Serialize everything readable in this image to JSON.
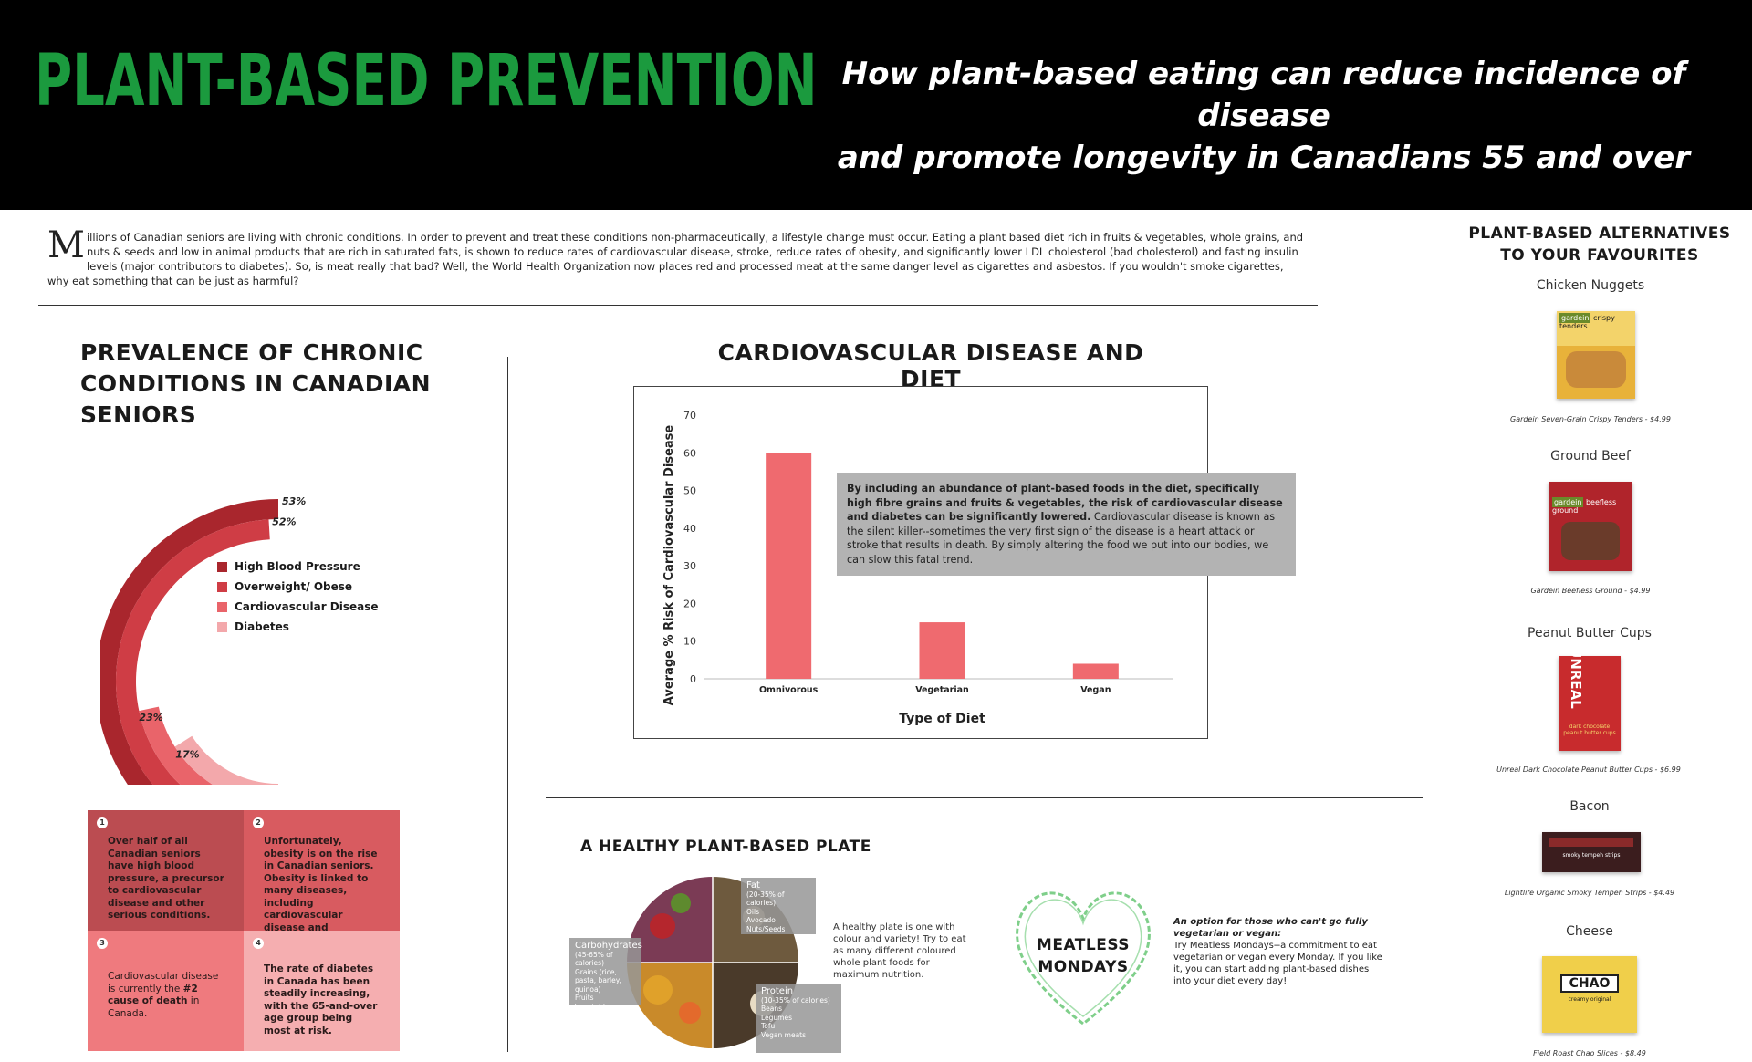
{
  "header": {
    "title": "PLANT-BASED PREVENTION",
    "subtitle_line1": "How plant-based eating can reduce incidence of disease",
    "subtitle_line2": "and promote longevity in Canadians 55 and over"
  },
  "intro": {
    "dropcap": "M",
    "text": "illions of Canadian seniors are living with chronic conditions. In order to prevent and treat these conditions non-pharmaceutically, a lifestyle change must occur. Eating a plant based diet rich in fruits & vegetables, whole grains, and nuts & seeds and low in animal products that are rich in saturated fats, is shown to reduce rates of cardiovascular disease, stroke, reduce rates of obesity, and significantly lower LDL cholesterol (bad cholesterol) and fasting insulin levels (major contributors to diabetes). So, is meat really that bad? Well, the World Health Organization now places red and processed meat at the same danger level as cigarettes and asbestos. If you wouldn't smoke cigarettes, why eat something that can be just as harmful?"
  },
  "prevalence": {
    "title": "PREVALENCE OF CHRONIC CONDITIONS IN CANADIAN SENIORS",
    "legend": [
      "High Blood Pressure",
      "Overweight/ Obese",
      "Cardiovascular Disease",
      "Diabetes"
    ],
    "rings": [
      {
        "label": "53%",
        "value": 53,
        "num": "1",
        "color": "#a9262d"
      },
      {
        "label": "52%",
        "value": 52,
        "num": "2",
        "color": "#cf3d45"
      },
      {
        "label": "23%",
        "value": 23,
        "num": "3",
        "color": "#e9646a"
      },
      {
        "label": "17%",
        "value": 17,
        "num": "4",
        "color": "#f3a8ab"
      }
    ],
    "facts": [
      {
        "num": "1",
        "text": "Over half of all Canadian seniors have high blood pressure, a precursor to cardiovascular disease and other serious conditions.",
        "bold": true,
        "color": "#bb4c51"
      },
      {
        "num": "2",
        "text": "Unfortunately, obesity is on the rise in Canadian seniors. Obesity is linked to many diseases, including cardiovascular disease and diabetes.",
        "bold": true,
        "color": "#d85b60"
      },
      {
        "num": "3",
        "text_pre": "Cardiovascular disease is currently the ",
        "text_bold": "#2 cause of death",
        "text_post": " in Canada.",
        "color": "#ef7a7e"
      },
      {
        "num": "4",
        "text": "The rate of diabetes in Canada has been steadily increasing, with the 65-and-over age group being most at risk.",
        "bold": true,
        "color": "#f5aeb0"
      }
    ]
  },
  "cvd": {
    "title": "CARDIOVASCULAR DISEASE AND DIET",
    "callout_bold": "By including an abundance of plant-based foods in the diet, specifically high fibre grains and fruits & vegetables, the risk of cardiovascular disease and diabetes can be significantly lowered.",
    "callout_text": " Cardiovascular disease is known as the silent killer--sometimes the very first sign of the disease is a heart attack or stroke that results in death. By simply altering the food we put into our bodies, we can slow this fatal trend."
  },
  "chart_data": {
    "type": "bar",
    "categories": [
      "Omnivorous",
      "Vegetarian",
      "Vegan"
    ],
    "values": [
      60,
      15,
      4
    ],
    "xlabel": "Type of Diet",
    "ylabel": "Average % Risk of Cardiovascular Disease",
    "ylim": [
      0,
      70
    ],
    "yticks": [
      0,
      10,
      20,
      30,
      40,
      50,
      60,
      70
    ],
    "bar_color": "#ef6a6f",
    "grid": false
  },
  "plate": {
    "title": "A HEALTHY PLANT-BASED PLATE",
    "fat": {
      "name": "Fat",
      "sub": "(20-35% of calories)",
      "items": "Oils\nAvocado\nNuts/Seeds"
    },
    "carbs": {
      "name": "Carbohydrates",
      "sub": "(45-65% of calories)",
      "items": "Grains (rice, pasta, barley, quinoa)\nFruits\nVegetables"
    },
    "protein": {
      "name": "Protein",
      "sub": "(10-35% of calories)",
      "items": "Beans\nLegumes\nTofu\nVegan meats"
    },
    "description": "A healthy plate is one with colour and variety! Try to eat as many different coloured whole plant foods for maximum nutrition."
  },
  "meatless": {
    "line1": "MEATLESS",
    "line2": "MONDAYS",
    "heading": "An option for those who can't go fully vegetarian or vegan:",
    "text": "Try Meatless Mondays--a commitment to eat vegetarian or vegan every Monday. If you like it, you can start adding plant-based dishes into your diet every day!"
  },
  "alternatives": {
    "title_line1": "PLANT-BASED ALTERNATIVES",
    "title_line2": "TO YOUR FAVOURITES",
    "items": [
      {
        "name": "Chicken Nuggets",
        "caption": "Gardein Seven-Grain Crispy Tenders - $4.99",
        "pkg_label": "gardein",
        "pkg_text": "crispy tenders"
      },
      {
        "name": "Ground Beef",
        "caption": "Gardein Beefless Ground - $4.99",
        "pkg_label": "gardein",
        "pkg_text": "beefless ground"
      },
      {
        "name": "Peanut Butter Cups",
        "caption": "Unreal Dark Chocolate Peanut Butter Cups - $6.99",
        "pkg_label": "UNREAL",
        "pkg_text": "dark chocolate peanut butter cups"
      },
      {
        "name": "Bacon",
        "caption": "Lightlife Organic Smoky Tempeh Strips - $4.49",
        "pkg_label": "smoky tempeh strips",
        "pkg_text": ""
      },
      {
        "name": "Cheese",
        "caption": "Field Roast Chao Slices - $8.49",
        "pkg_label": "CHAO",
        "pkg_text": "creamy original"
      }
    ]
  },
  "colors": {
    "brand_green": "#1b9a3e",
    "banner": "#000000"
  }
}
